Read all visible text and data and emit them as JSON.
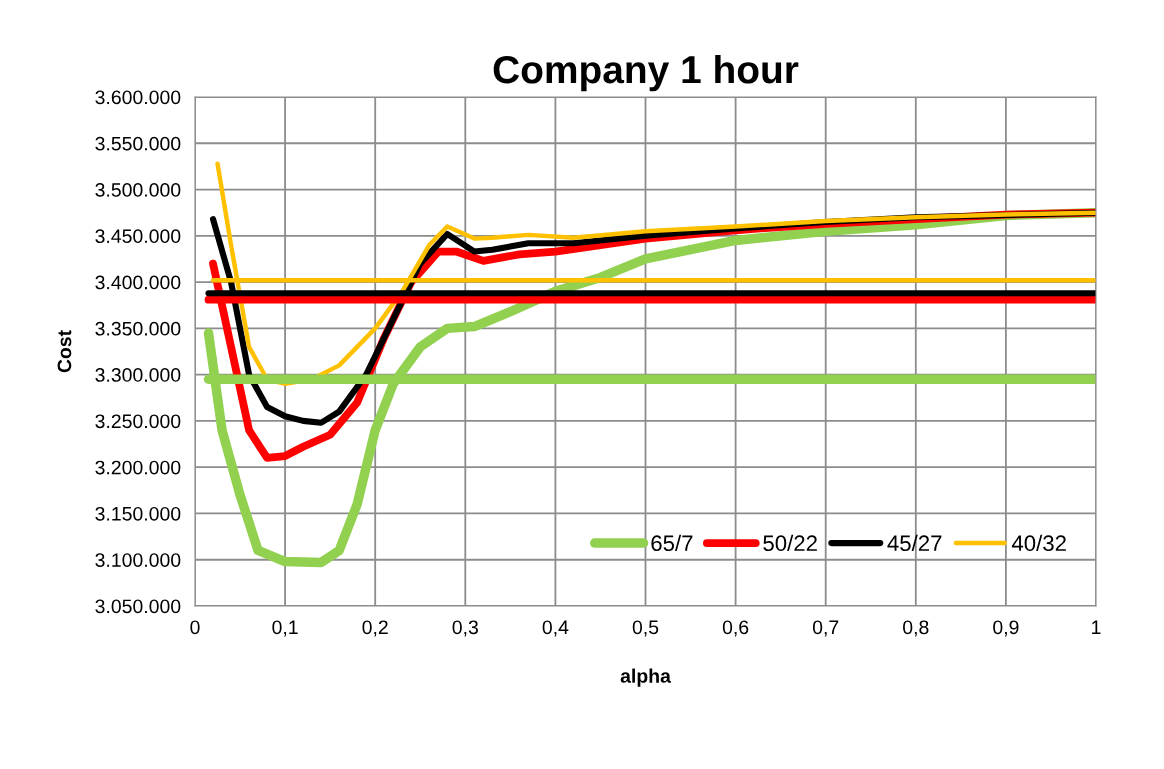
{
  "chart_data": {
    "type": "line",
    "title": "Company 1 hour",
    "xlabel": "alpha",
    "ylabel": "Cost",
    "xlim": [
      0,
      1
    ],
    "xticks": [
      0,
      {
        "value": 0.1,
        "label": "0,1"
      },
      {
        "value": 0.2,
        "label": "0,2"
      },
      {
        "value": 0.3,
        "label": "0,3"
      },
      {
        "value": 0.4,
        "label": "0,4"
      },
      {
        "value": 0.5,
        "label": "0,5"
      },
      {
        "value": 0.6,
        "label": "0,6"
      },
      {
        "value": 0.7,
        "label": "0,7"
      },
      {
        "value": 0.8,
        "label": "0,8"
      },
      {
        "value": 0.9,
        "label": "0,9"
      },
      1
    ],
    "ylim": [
      3050000,
      3600000
    ],
    "yticks": [
      {
        "value": 3050000,
        "label": "3.050.000"
      },
      {
        "value": 3100000,
        "label": "3.100.000"
      },
      {
        "value": 3150000,
        "label": "3.150.000"
      },
      {
        "value": 3200000,
        "label": "3.200.000"
      },
      {
        "value": 3250000,
        "label": "3.250.000"
      },
      {
        "value": 3300000,
        "label": "3.300.000"
      },
      {
        "value": 3350000,
        "label": "3.350.000"
      },
      {
        "value": 3400000,
        "label": "3.400.000"
      },
      {
        "value": 3450000,
        "label": "3.450.000"
      },
      {
        "value": 3500000,
        "label": "3.500.000"
      },
      {
        "value": 3550000,
        "label": "3.550.000"
      },
      {
        "value": 3600000,
        "label": "3.600.000"
      }
    ],
    "grid": true,
    "legend": "bottom right",
    "marker": "none",
    "line_style": "solid",
    "series": [
      {
        "name": "65/7",
        "color": "#92d050",
        "x": [
          0.015,
          0.03,
          0.05,
          0.07,
          0.1,
          0.14,
          0.16,
          0.18,
          0.2,
          0.22,
          0.25,
          0.28,
          0.31,
          0.35,
          0.4,
          0.45,
          0.5,
          0.55,
          0.6,
          0.7,
          0.8,
          0.9,
          1.0
        ],
        "values": [
          3345000,
          3240000,
          3170000,
          3110000,
          3098000,
          3097000,
          3110000,
          3160000,
          3240000,
          3290000,
          3330000,
          3350000,
          3352000,
          3368000,
          3390000,
          3405000,
          3425000,
          3435000,
          3445000,
          3455000,
          3462000,
          3472000,
          3475000
        ]
      },
      {
        "name": "50/22",
        "color": "#ff0000",
        "x": [
          0.02,
          0.04,
          0.06,
          0.08,
          0.1,
          0.12,
          0.15,
          0.18,
          0.21,
          0.24,
          0.27,
          0.29,
          0.32,
          0.36,
          0.4,
          0.45,
          0.5,
          0.6,
          0.7,
          0.8,
          0.9,
          1.0
        ],
        "values": [
          3420000,
          3330000,
          3240000,
          3210000,
          3212000,
          3222000,
          3235000,
          3270000,
          3340000,
          3400000,
          3433000,
          3433000,
          3423000,
          3430000,
          3433000,
          3440000,
          3447000,
          3456000,
          3463000,
          3468000,
          3473000,
          3475000
        ]
      },
      {
        "name": "45/27",
        "color": "#000000",
        "x": [
          0.02,
          0.04,
          0.06,
          0.08,
          0.1,
          0.12,
          0.14,
          0.16,
          0.19,
          0.22,
          0.25,
          0.28,
          0.31,
          0.33,
          0.37,
          0.42,
          0.5,
          0.6,
          0.7,
          0.8,
          1.0
        ],
        "values": [
          3468000,
          3400000,
          3300000,
          3265000,
          3255000,
          3250000,
          3248000,
          3260000,
          3300000,
          3360000,
          3420000,
          3452000,
          3433000,
          3435000,
          3442000,
          3442000,
          3450000,
          3458000,
          3465000,
          3470000,
          3475000
        ]
      },
      {
        "name": "40/32",
        "color": "#ffc000",
        "x": [
          0.025,
          0.04,
          0.06,
          0.08,
          0.1,
          0.13,
          0.16,
          0.2,
          0.23,
          0.26,
          0.28,
          0.31,
          0.33,
          0.37,
          0.42,
          0.5,
          0.6,
          0.7,
          0.8,
          0.9,
          1.0
        ],
        "values": [
          3528000,
          3440000,
          3330000,
          3295000,
          3290000,
          3295000,
          3310000,
          3350000,
          3390000,
          3440000,
          3460000,
          3447000,
          3448000,
          3451000,
          3448000,
          3455000,
          3460000,
          3466000,
          3470000,
          3473000,
          3475000
        ]
      },
      {
        "color": "#92d050",
        "x": [
          0.015,
          1.0
        ],
        "values": [
          3295000,
          3295000
        ]
      },
      {
        "color": "#ff0000",
        "x": [
          0.015,
          1.0
        ],
        "values": [
          3381000,
          3381000
        ]
      },
      {
        "color": "#000000",
        "x": [
          0.015,
          1.0
        ],
        "values": [
          3388000,
          3388000
        ]
      },
      {
        "color": "#ffc000",
        "x": [
          0.02,
          1.0
        ],
        "values": [
          3402000,
          3402000
        ]
      }
    ]
  }
}
